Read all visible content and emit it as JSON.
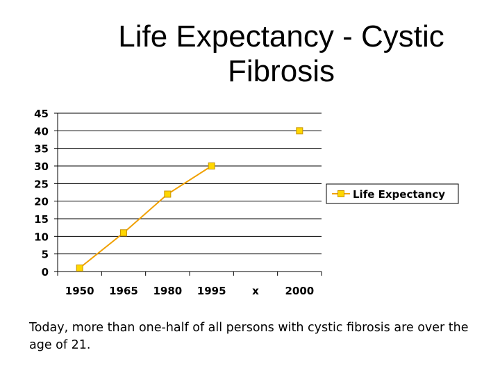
{
  "slide": {
    "title": "Life Expectancy - Cystic Fibrosis",
    "caption": "Today, more than one-half of all persons with cystic fibrosis are over the age of 21."
  },
  "chart_data": {
    "type": "line",
    "title": "Life Expectancy - Cystic Fibrosis",
    "xlabel": "",
    "ylabel": "",
    "categories": [
      "1950",
      "1965",
      "1980",
      "1995",
      "x",
      "2000"
    ],
    "series": [
      {
        "name": "Life Expectancy",
        "values": [
          1,
          11,
          22,
          30,
          null,
          40
        ],
        "connected_points": 4,
        "color": "#f0a000",
        "marker_color": "#ffd700"
      }
    ],
    "ylim": [
      0,
      45
    ],
    "yticks": [
      0,
      5,
      10,
      15,
      20,
      25,
      30,
      35,
      40,
      45
    ],
    "grid": true,
    "legend": "right",
    "legend_label": "Life Expectancy"
  }
}
